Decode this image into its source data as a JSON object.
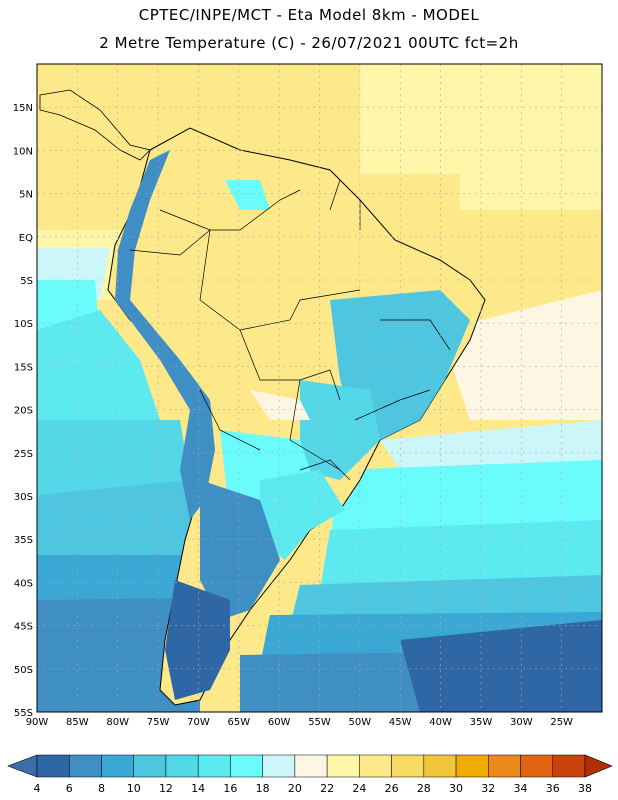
{
  "header": {
    "line1": "CPTEC/INPE/MCT -  Eta Model 8km - MODEL",
    "line2": "2 Metre Temperature (C) - 26/07/2021 00UTC fct=2h"
  },
  "map": {
    "lon_range": [
      -90,
      -20
    ],
    "lat_range": [
      -55,
      20
    ],
    "lat_labels": [
      "15N",
      "10N",
      "5N",
      "EQ",
      "5S",
      "10S",
      "15S",
      "20S",
      "25S",
      "30S",
      "35S",
      "40S",
      "45S",
      "50S",
      "55S"
    ],
    "lon_labels": [
      "90W",
      "85W",
      "80W",
      "75W",
      "70W",
      "65W",
      "60W",
      "55W",
      "50W",
      "45W",
      "40W",
      "35W",
      "30W",
      "25W"
    ]
  },
  "colorbar": {
    "ticks": [
      "4",
      "6",
      "8",
      "10",
      "12",
      "14",
      "16",
      "18",
      "20",
      "22",
      "24",
      "26",
      "28",
      "30",
      "32",
      "34",
      "36",
      "38"
    ],
    "colors": [
      "#3a6ea9",
      "#2f66a6",
      "#3f8ec4",
      "#3aa7d5",
      "#4fc6e0",
      "#54d8e8",
      "#5ce9ef",
      "#6afbfb",
      "#cdf6fb",
      "#fdf6e3",
      "#fef6a8",
      "#fde98a",
      "#f7d964",
      "#f0c53a",
      "#f0ac00",
      "#ea8a1a",
      "#e06512",
      "#c8430c",
      "#b03005"
    ]
  }
}
